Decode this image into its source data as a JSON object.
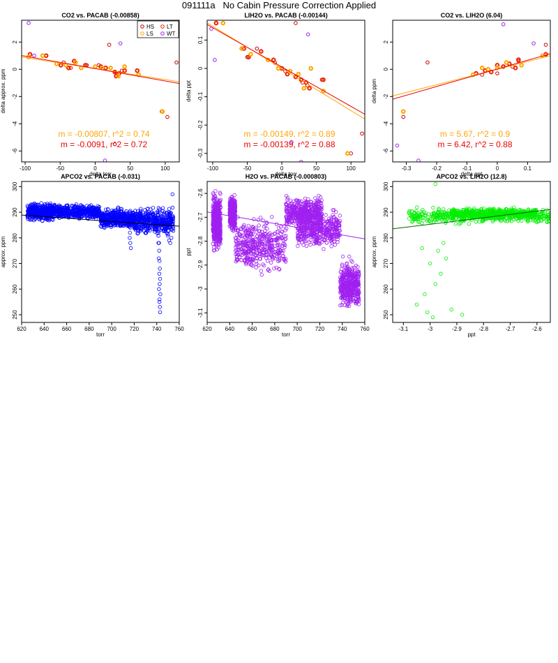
{
  "page_title": "091111a   No Cabin Pressure Correction Applied",
  "chart_data": [
    {
      "type": "scatter",
      "title": "CO2 vs. PACAB (-0.00858)",
      "xlabel": "delta torr",
      "ylabel": "delta approx. ppm",
      "xlim": [
        -105,
        120
      ],
      "ylim": [
        -6.8,
        3.6
      ],
      "xticks": [
        -100,
        -50,
        0,
        50,
        100
      ],
      "yticks": [
        -6,
        -4,
        -2,
        0,
        2
      ],
      "grid": false,
      "legend": {
        "placement": "top-right",
        "entries": [
          {
            "label": "HS",
            "color": "#cc0000"
          },
          {
            "label": "LT",
            "color": "#ee2200"
          },
          {
            "label": "LS",
            "color": "#ffa500"
          },
          {
            "label": "WT",
            "color": "#a020f0"
          }
        ]
      },
      "series": [
        {
          "name": "HS",
          "color": "#cc0000",
          "points": [
            [
              -70,
              1.0
            ],
            [
              -45,
              0.5
            ],
            [
              -35,
              0.1
            ],
            [
              -12,
              0.3
            ],
            [
              5,
              0.3
            ],
            [
              20,
              1.8
            ],
            [
              28,
              -5.5
            ],
            [
              30,
              -0.3
            ],
            [
              38,
              -0.1
            ],
            [
              95,
              -3.1
            ],
            [
              103,
              -3.5
            ],
            [
              116,
              0.5
            ]
          ]
        },
        {
          "name": "LT",
          "color": "#ee2200",
          "points": [
            [
              -93,
              1.1
            ],
            [
              -70,
              1.0
            ],
            [
              -49,
              0.3
            ],
            [
              -38,
              0.1
            ],
            [
              -30,
              0.6
            ],
            [
              -14,
              0.3
            ],
            [
              8,
              0.2
            ],
            [
              15,
              0.1
            ],
            [
              28,
              -0.2
            ],
            [
              30,
              -0.5
            ],
            [
              34,
              -0.3
            ],
            [
              42,
              -0.1
            ],
            [
              60,
              -0.1
            ]
          ]
        },
        {
          "name": "LS",
          "color": "#ffa500",
          "points": [
            [
              -95,
              0.9
            ],
            [
              -75,
              1.0
            ],
            [
              -55,
              0.4
            ],
            [
              -42,
              0.3
            ],
            [
              -28,
              0.5
            ],
            [
              -20,
              0.1
            ],
            [
              0,
              0.2
            ],
            [
              10,
              0.1
            ],
            [
              22,
              0.1
            ],
            [
              33,
              -0.5
            ],
            [
              42,
              0.2
            ],
            [
              62,
              -0.4
            ],
            [
              96,
              -3.1
            ]
          ]
        },
        {
          "name": "WT",
          "color": "#a020f0",
          "points": [
            [
              -95,
              3.4
            ],
            [
              -87,
              1.0
            ],
            [
              14,
              -6.7
            ],
            [
              36,
              1.9
            ]
          ]
        }
      ],
      "fits": [
        {
          "color": "#ffa500",
          "slope": -0.00807,
          "intercept": 0.05,
          "label": "m = -0.00807, r^2 = 0.74"
        },
        {
          "color": "#ee0000",
          "slope": -0.0091,
          "intercept": 0.05,
          "label": "m = -0.0091, r^2 = 0.72"
        }
      ]
    },
    {
      "type": "scatter",
      "title": "LIH2O vs. PACAB (-0.00144)",
      "xlabel": "delta torr",
      "ylabel": "delta ppt",
      "xlim": [
        -108,
        120
      ],
      "ylim": [
        -0.33,
        0.17
      ],
      "xticks": [
        -100,
        -50,
        0,
        50,
        100
      ],
      "yticks": [
        -0.3,
        -0.2,
        -0.1,
        0.0,
        0.1
      ],
      "grid": false,
      "series": [
        {
          "name": "HS",
          "color": "#cc0000",
          "points": [
            [
              -95,
              0.16
            ],
            [
              -50,
              0.04
            ],
            [
              -36,
              0.07
            ],
            [
              -10,
              0.02
            ],
            [
              5,
              -0.01
            ],
            [
              20,
              0.16
            ],
            [
              30,
              -0.05
            ],
            [
              37,
              -0.06
            ],
            [
              58,
              -0.04
            ],
            [
              100,
              -0.3
            ],
            [
              116,
              -0.23
            ]
          ]
        },
        {
          "name": "LT",
          "color": "#ee2200",
          "points": [
            [
              -95,
              0.16
            ],
            [
              -55,
              0.07
            ],
            [
              -48,
              0.04
            ],
            [
              -30,
              0.06
            ],
            [
              -12,
              0.03
            ],
            [
              0,
              0.0
            ],
            [
              8,
              -0.02
            ],
            [
              20,
              -0.03
            ],
            [
              28,
              -0.04
            ],
            [
              35,
              -0.05
            ],
            [
              40,
              -0.07
            ],
            [
              60,
              -0.04
            ]
          ]
        },
        {
          "name": "LS",
          "color": "#ffa500",
          "points": [
            [
              -85,
              0.16
            ],
            [
              -58,
              0.07
            ],
            [
              -45,
              0.05
            ],
            [
              -20,
              0.03
            ],
            [
              -5,
              0.0
            ],
            [
              12,
              -0.01
            ],
            [
              24,
              -0.02
            ],
            [
              32,
              -0.07
            ],
            [
              42,
              0.0
            ],
            [
              60,
              -0.08
            ],
            [
              95,
              -0.3
            ]
          ]
        },
        {
          "name": "WT",
          "color": "#a020f0",
          "points": [
            [
              -102,
              0.14
            ],
            [
              -97,
              0.03
            ],
            [
              14,
              -0.26
            ],
            [
              38,
              0.12
            ],
            [
              28,
              -0.33
            ]
          ]
        }
      ],
      "fits": [
        {
          "color": "#ffa500",
          "slope": -0.00149,
          "intercept": 0.0,
          "label": "m = -0.00149, r^2 = 0.89"
        },
        {
          "color": "#ee0000",
          "slope": -0.00139,
          "intercept": 0.005,
          "label": "m = -0.00139, r^2 = 0.88"
        }
      ]
    },
    {
      "type": "scatter",
      "title": "CO2 vs. LIH2O (6.04)",
      "xlabel": "delta ppt",
      "ylabel": "delta ppm",
      "xlim": [
        -0.345,
        0.175
      ],
      "ylim": [
        -6.8,
        3.6
      ],
      "xticks": [
        -0.3,
        -0.2,
        -0.1,
        0.0,
        0.1
      ],
      "yticks": [
        -6,
        -4,
        -2,
        0,
        2
      ],
      "grid": false,
      "series": [
        {
          "name": "HS",
          "color": "#cc0000",
          "points": [
            [
              -0.31,
              -3.5
            ],
            [
              -0.23,
              0.5
            ],
            [
              -0.05,
              -0.4
            ],
            [
              0.0,
              -0.3
            ],
            [
              0.05,
              0.2
            ],
            [
              0.07,
              0.6
            ],
            [
              0.16,
              1.8
            ]
          ]
        },
        {
          "name": "LT",
          "color": "#ee2200",
          "points": [
            [
              -0.07,
              -0.3
            ],
            [
              -0.04,
              -0.1
            ],
            [
              -0.02,
              -0.2
            ],
            [
              0.0,
              0.3
            ],
            [
              0.02,
              0.2
            ],
            [
              0.04,
              0.4
            ],
            [
              0.06,
              0.1
            ],
            [
              0.07,
              0.7
            ],
            [
              0.16,
              1.1
            ]
          ]
        },
        {
          "name": "LS",
          "color": "#ffa500",
          "points": [
            [
              -0.31,
              -3.1
            ],
            [
              -0.08,
              -0.4
            ],
            [
              -0.05,
              0.1
            ],
            [
              -0.03,
              0.0
            ],
            [
              0.0,
              0.1
            ],
            [
              0.03,
              0.5
            ],
            [
              0.08,
              0.3
            ],
            [
              0.15,
              1.0
            ]
          ]
        },
        {
          "name": "WT",
          "color": "#a020f0",
          "points": [
            [
              -0.33,
              -5.6
            ],
            [
              -0.26,
              -6.7
            ],
            [
              0.02,
              3.3
            ],
            [
              0.12,
              1.9
            ]
          ]
        }
      ],
      "fits": [
        {
          "color": "#ffa500",
          "slope": 5.67,
          "intercept": 0.0,
          "label": "m = 5.67, r^2 = 0.9"
        },
        {
          "color": "#ee0000",
          "slope": 6.42,
          "intercept": 0.02,
          "label": "m = 6.42, r^2 = 0.88"
        }
      ]
    },
    {
      "type": "scatter",
      "title": "APCO2 vs. PACAB (-0.031)",
      "xlabel": "torr",
      "ylabel": "approx. ppm",
      "xlim": [
        620,
        760
      ],
      "ylim": [
        247,
        302
      ],
      "xticks": [
        620,
        640,
        660,
        680,
        700,
        720,
        740,
        760
      ],
      "yticks": [
        250,
        260,
        270,
        280,
        290,
        300
      ],
      "grid": false,
      "point_color": "#0000ff",
      "fit": {
        "color": "#000000",
        "slope": -0.031,
        "intercept": 308.1
      },
      "bands": [
        {
          "x": [
            625,
            650
          ],
          "center": 290.2,
          "spread": 4.2
        },
        {
          "x": [
            650,
            690
          ],
          "center": 290.0,
          "spread": 3.6
        },
        {
          "x": [
            690,
            720
          ],
          "center": 287.5,
          "spread": 5.0
        },
        {
          "x": [
            720,
            755
          ],
          "center": 286.5,
          "spread": 6.5
        }
      ],
      "tails": [
        {
          "x": 741,
          "points": [
            [
              741,
              285
            ],
            [
              741.5,
              282
            ],
            [
              742,
              278
            ],
            [
              742.2,
              275
            ],
            [
              742.5,
              271
            ],
            [
              742.8,
              268
            ],
            [
              743,
              264
            ],
            [
              742.6,
              262
            ],
            [
              743.2,
              258
            ],
            [
              742.4,
              255
            ],
            [
              742.8,
              253
            ],
            [
              743,
              251
            ],
            [
              742.5,
              256
            ],
            [
              742,
              260
            ],
            [
              742.3,
              266
            ],
            [
              741.8,
              272
            ],
            [
              741.5,
              278
            ]
          ]
        },
        {
          "x": 716,
          "points": [
            [
              716,
              280
            ],
            [
              716.5,
              278
            ],
            [
              717,
              276
            ],
            [
              716.2,
              282
            ]
          ]
        },
        {
          "x": 752,
          "points": [
            [
              751,
              279
            ],
            [
              752,
              278
            ],
            [
              753,
              280
            ],
            [
              754,
              297
            ]
          ]
        }
      ]
    },
    {
      "type": "scatter",
      "title": "H2O vs. PACAB (-0.000803)",
      "xlabel": "torr",
      "ylabel": "ppt",
      "xlim": [
        620,
        760
      ],
      "ylim": [
        -3.14,
        -2.55
      ],
      "xticks": [
        620,
        640,
        660,
        680,
        700,
        720,
        740,
        760
      ],
      "yticks": [
        -3.1,
        -3.0,
        -2.9,
        -2.8,
        -2.7,
        -2.6
      ],
      "grid": false,
      "point_color": "#a020f0",
      "fit": {
        "color": "#a020f0",
        "slope": -0.000803,
        "intercept": -2.18
      },
      "bands": [
        {
          "x": [
            625,
            632
          ],
          "center": -2.72,
          "spread": 0.15
        },
        {
          "x": [
            640,
            645
          ],
          "center": -2.68,
          "spread": 0.09
        },
        {
          "x": [
            645,
            690
          ],
          "center": -2.82,
          "spread": 0.14
        },
        {
          "x": [
            690,
            722
          ],
          "center": -2.68,
          "spread": 0.08
        },
        {
          "x": [
            700,
            738
          ],
          "center": -2.75,
          "spread": 0.1
        },
        {
          "x": [
            738,
            755
          ],
          "center": -2.98,
          "spread": 0.12
        }
      ],
      "tails": []
    },
    {
      "type": "scatter",
      "title": "APCO2 vs. LIH2O (12.8)",
      "xlabel": "ppt",
      "ylabel": "approx. ppm",
      "xlim": [
        -3.14,
        -2.55
      ],
      "ylim": [
        247,
        302
      ],
      "xticks": [
        -3.1,
        -3.0,
        -2.9,
        -2.8,
        -2.7,
        -2.6
      ],
      "yticks": [
        250,
        260,
        270,
        280,
        290,
        300
      ],
      "grid": false,
      "point_color": "#00ee00",
      "fit": {
        "color": "#006400",
        "slope": 12.8,
        "intercept": 323.7
      },
      "bands": [
        {
          "x": [
            -3.08,
            -2.55
          ],
          "center": 288.5,
          "spread": 3.8
        },
        {
          "x": [
            -2.92,
            -2.6
          ],
          "center": 289.5,
          "spread": 2.5
        }
      ],
      "tails": [
        {
          "x": -3.0,
          "points": [
            [
              -3.05,
              254
            ],
            [
              -3.02,
              258
            ],
            [
              -2.98,
              262
            ],
            [
              -2.96,
              266
            ],
            [
              -3.0,
              270
            ],
            [
              -2.94,
              272
            ],
            [
              -2.97,
              275
            ],
            [
              -3.01,
              251
            ],
            [
              -2.99,
              249
            ],
            [
              -2.92,
              252
            ],
            [
              -2.88,
              250
            ],
            [
              -2.95,
              278
            ],
            [
              -3.03,
              276
            ],
            [
              -2.98,
              301
            ]
          ]
        }
      ]
    }
  ]
}
